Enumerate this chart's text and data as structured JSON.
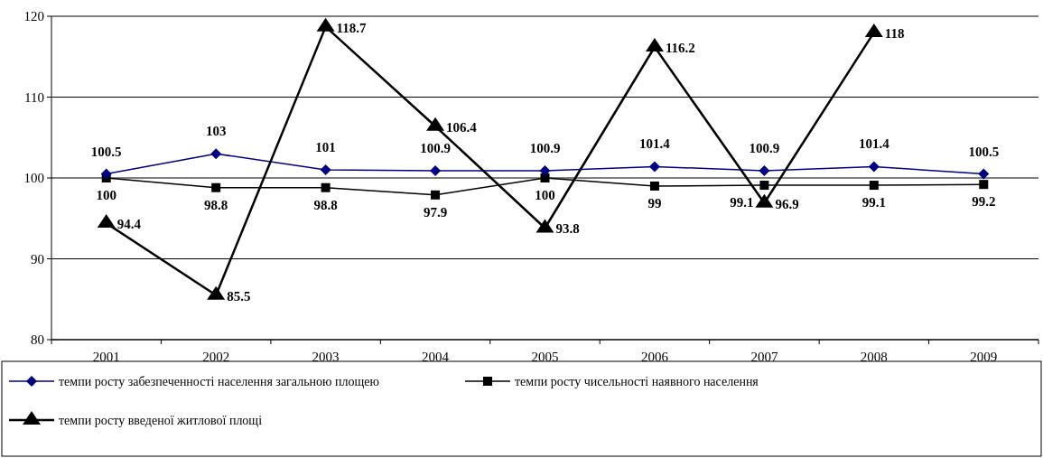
{
  "chart_data": {
    "type": "line",
    "categories": [
      "2001",
      "2002",
      "2003",
      "2004",
      "2005",
      "2006",
      "2007",
      "2008",
      "2009"
    ],
    "ylim": [
      80,
      120
    ],
    "yticks": [
      80,
      90,
      100,
      110,
      120
    ],
    "grid": "y",
    "legend": "bottom",
    "data_labels": true,
    "series": [
      {
        "name": "темпи росту забезпеченності населення загальною площею",
        "color": "#000080",
        "marker": "diamond",
        "values": [
          100.5,
          103,
          101,
          100.9,
          100.9,
          101.4,
          100.9,
          101.4,
          100.5
        ]
      },
      {
        "name": "темпи росту чисельності наявного населення",
        "color": "#000000",
        "marker": "square",
        "values": [
          100,
          98.8,
          98.8,
          97.9,
          100,
          99,
          99.1,
          99.1,
          99.2
        ]
      },
      {
        "name": "темпи росту введеної житлової площі",
        "color": "#000000",
        "marker": "triangle",
        "values": [
          94.4,
          85.5,
          118.7,
          106.4,
          93.8,
          116.2,
          96.9,
          118,
          null
        ]
      }
    ]
  }
}
